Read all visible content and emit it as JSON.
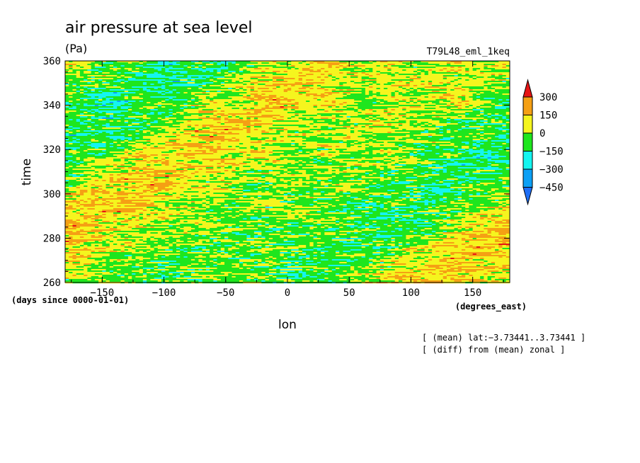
{
  "chart_data": {
    "type": "heatmap",
    "title": "air pressure at sea level",
    "units": "(Pa)",
    "experiment": "T79L48_eml_1keq",
    "xlabel": "lon",
    "xunits": "(degrees_east)",
    "ylabel": "time",
    "yunits": "(days since 0000-01-01)",
    "xlim": [
      -180,
      180
    ],
    "ylim": [
      260,
      360
    ],
    "xticks": [
      -150,
      -100,
      -50,
      0,
      50,
      100,
      150
    ],
    "xtick_labels": [
      "−150",
      "−100",
      "−50",
      "0",
      "50",
      "100",
      "150"
    ],
    "yticks": [
      260,
      280,
      300,
      320,
      340,
      360
    ],
    "ytick_labels": [
      "260",
      "280",
      "300",
      "320",
      "340",
      "360"
    ],
    "colorbar": {
      "levels": [
        -450,
        -300,
        -150,
        0,
        150,
        300
      ],
      "level_labels": [
        "−450",
        "−300",
        "−150",
        "0",
        "150",
        "300"
      ],
      "colors": [
        "#1e6ef5",
        "#0ca0f5",
        "#14f5f0",
        "#1ee61e",
        "#f5f51e",
        "#f5a014",
        "#e61414"
      ],
      "extend": "both"
    },
    "annotations": [
      "[ (mean) lat:−3.73441..3.73441 ]",
      "[ (diff) from (mean) zonal ]"
    ],
    "grid": false,
    "pattern": "zonally streaked anomalies with eastward-propagating diagonal bands of lower pressure"
  }
}
